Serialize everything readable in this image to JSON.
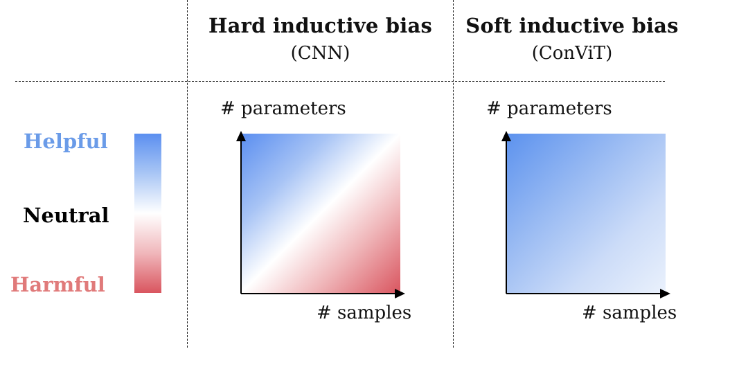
{
  "columns": [
    {
      "title": "Hard inductive bias",
      "subtitle": "(CNN)",
      "y_axis_label": "# parameters",
      "x_axis_label": "# samples"
    },
    {
      "title": "Soft inductive bias",
      "subtitle": "(ConViT)",
      "y_axis_label": "# parameters",
      "x_axis_label": "# samples"
    }
  ],
  "legend": {
    "helpful": "Helpful",
    "neutral": "Neutral",
    "harmful": "Harmful"
  },
  "colors": {
    "helpful": "#5b8ff0",
    "harmful": "#d9555f",
    "helpful_text": "#6a9be8",
    "harmful_text": "#e07a7a",
    "neutral_text": "#000000"
  }
}
